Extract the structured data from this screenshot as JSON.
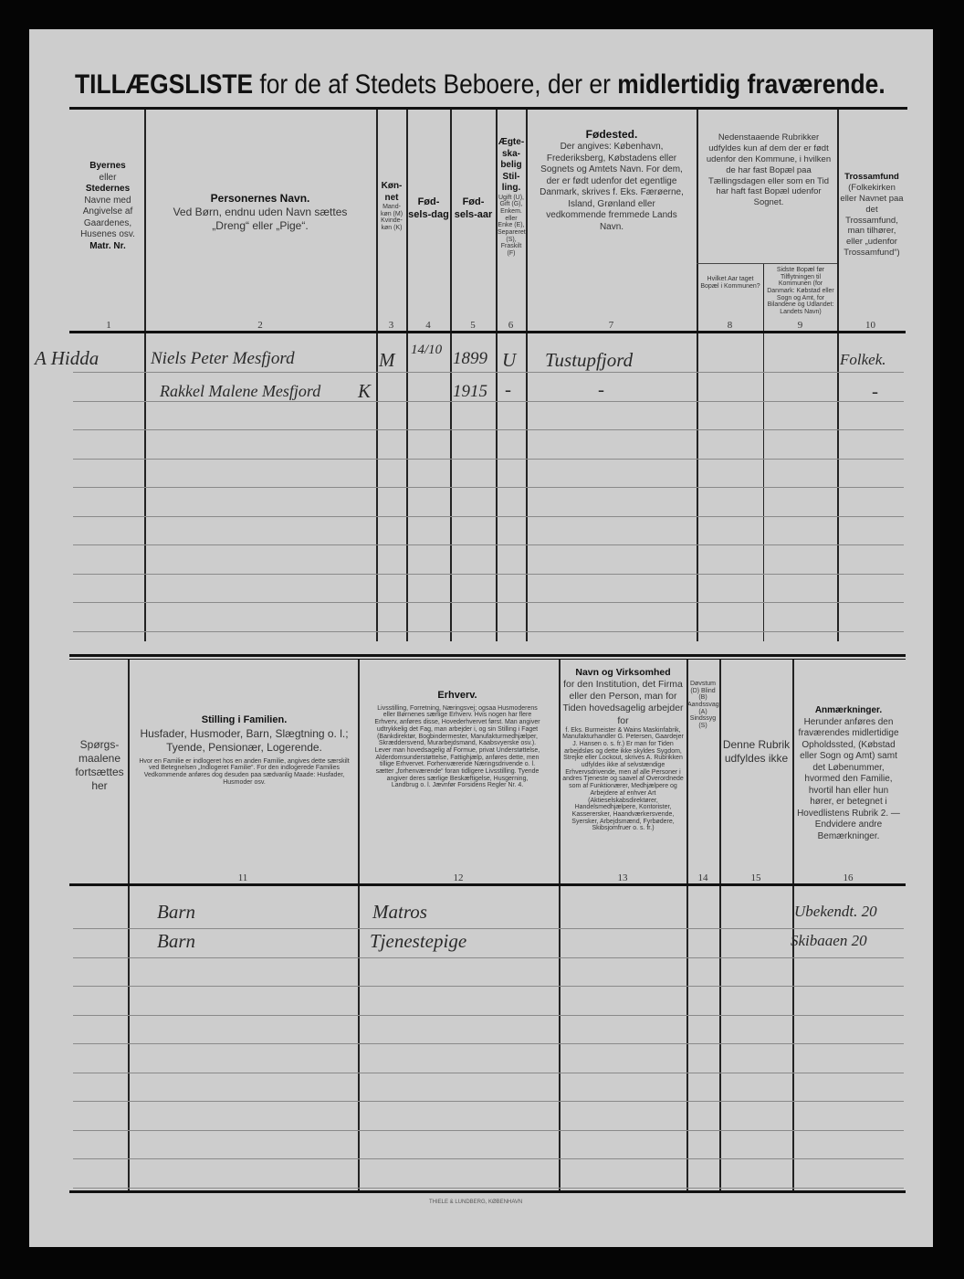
{
  "title": {
    "part1": "TILLÆGSLISTE",
    "part2": " for de af Stedets Beboere, der er ",
    "part3": "midlertidig fraværende."
  },
  "top_headers": [
    {
      "num": "1",
      "bold": "Byernes",
      "text": "eller",
      "bold2": "Stedernes",
      "text2": "Navne med Angivelse af Gaardenes, Husenes osv.",
      "bold3": "Matr. Nr."
    },
    {
      "num": "2",
      "bold": "Personernes Navn.",
      "text": "Ved Børn, endnu uden Navn sættes „Dreng“ eller „Pige“."
    },
    {
      "num": "3",
      "bold": "Køn-net",
      "text": "Mand-køn (M) Kvinde-køn (K)"
    },
    {
      "num": "4",
      "bold": "Fød-sels-dag"
    },
    {
      "num": "5",
      "bold": "Fød-sels-aar"
    },
    {
      "num": "6",
      "bold": "Ægte-ska-belig Stil-ling.",
      "text": "Ugift (U), Gift (G), Enkem. eller Enke (E), Separeret (S), Fraskilt (F)"
    },
    {
      "num": "7",
      "bold": "Fødested.",
      "text": "Der angives: København, Frederiksberg, Købstadens eller Sognets og Amtets Navn. For dem, der er født udenfor det egentlige Danmark, skrives f. Eks. Færøerne, Island, Grønland eller vedkommende fremmede Lands Navn."
    },
    {
      "num": "8",
      "text": "Hvilket Aar taget Bopæl i Kommunen?"
    },
    {
      "num": "9",
      "text": "Sidste Bopæl før Tilflytningen til Kommunen (for Danmark: Købstad eller Sogn og Amt, for Bilandene og Udlandet: Landets Navn)"
    },
    {
      "num": "10",
      "bold": "Trossamfund",
      "text": "(Folkekirken eller Navnet paa det Trossamfund, man tilhører, eller „udenfor Trossamfund“)"
    }
  ],
  "col8_9_header": "Nedenstaaende Rubrikker udfyldes kun af dem der er født udenfor den Kommune, i hvilken de har fast Bopæl paa Tællingsdagen eller som en Tid har haft fast Bopæl udenfor Sognet.",
  "top_rows": [
    {
      "place": "A Hidda",
      "name": "Niels Peter Mesfjord",
      "sex": "M",
      "birthday": "14/10",
      "year": "1899",
      "marital": "U",
      "birthplace": "Tustupfjord",
      "religion": "Folkek."
    },
    {
      "place": "",
      "name": "Rakkel Malene Mesfjord",
      "sex": "K",
      "birthday": "",
      "year": "1915",
      "marital": "-",
      "birthplace": "-",
      "religion": "-"
    }
  ],
  "bottom_headers": [
    {
      "num": "",
      "text": "Spørgs-maalene fortsættes her"
    },
    {
      "num": "11",
      "bold": "Stilling i Familien.",
      "text": "Husfader, Husmoder, Barn, Slægtning o. l.; Tyende, Pensionær, Logerende.",
      "small": "Hvor en Familie er indlogeret hos en anden Familie, angives dette særskilt ved Betegnelsen „Indlogeret Familie“. For den indlogerede Families Vedkommende anføres dog desuden paa sædvanlig Maade: Husfader, Husmoder osv."
    },
    {
      "num": "12",
      "bold": "Erhverv.",
      "small": "Livsstilling, Forretning, Næringsvej; ogsaa Husmoderens eller Børnenes særlige Erhverv. Hvis nogen har flere Erhverv, anføres disse, Hovederhvervet først. Man angiver udtrykkelig det Fag, man arbejder i, og sin Stilling i Faget (Bankdirektør, Bogbindermester, Manufakturmedhjælper, Skræddersvend, Murarbejdsmand, Kaabsvyerske osv.). Lever man hovedsagelig af Formue, privat Understøttelse, Alderdomsunderstøttelse, Fattighjælp, anføres dette, men tillige Erhvervet. Forhenværende Næringsdrivende o. l. sætter „forhenværende“ foran tidligere Livsstilling. Tyende angiver deres særlige Beskæftigelse, Husgerning, Landbrug o. l. Jævnfør Forsidens Regler Nr. 4."
    },
    {
      "num": "13",
      "bold": "Navn og Virksomhed",
      "text": "for den Institution, det Firma eller den Person, man for Tiden hovedsagelig arbejder for",
      "small": "f. Eks. Burmeister & Wains Maskinfabrik, Manufakturhandler G. Petersen, Gaardejer J. Hansen o. s. fr.) Er man for Tiden arbejdsløs og dette ikke skyldes Sygdom, Strejke eller Lockout, skrives A. Rubrikken udfyldes ikke af selvstændige Erhvervsdrivende, men af alle Personer i andres Tjeneste og saavel af Overordnede som af Funktionærer, Medhjælpere og Arbejdere af enhver Art (Aktieselskabsdirektører, Handelsmedhjælpere, Kontorister, Kasserersker, Haandværkersvende, Syersker, Arbejdsmænd, Fyrbødere, Skibsjomfruer o. s. fr.)"
    },
    {
      "num": "14",
      "text": "Døvstum (D) Blind (B) Aandssvag (A) Sindssyg (S)"
    },
    {
      "num": "15",
      "text": "Denne Rubrik udfyldes ikke"
    },
    {
      "num": "16",
      "bold": "Anmærkninger.",
      "text": "Herunder anføres den fraværendes midlertidige Opholdssted, (Købstad eller Sogn og Amt) samt det Løbenummer, hvormed den Familie, hvortil han eller hun hører, er betegnet i Hovedlistens Rubrik 2. — Endvidere andre Bemærkninger."
    }
  ],
  "bottom_rows": [
    {
      "family": "Barn",
      "occupation": "Matros",
      "remarks": "Ubekendt. 20"
    },
    {
      "family": "Barn",
      "occupation": "Tjenestepige",
      "remarks": "Skibaaen 20"
    }
  ],
  "printer": "THIELE & LUNDBERG, KØBENHAVN"
}
